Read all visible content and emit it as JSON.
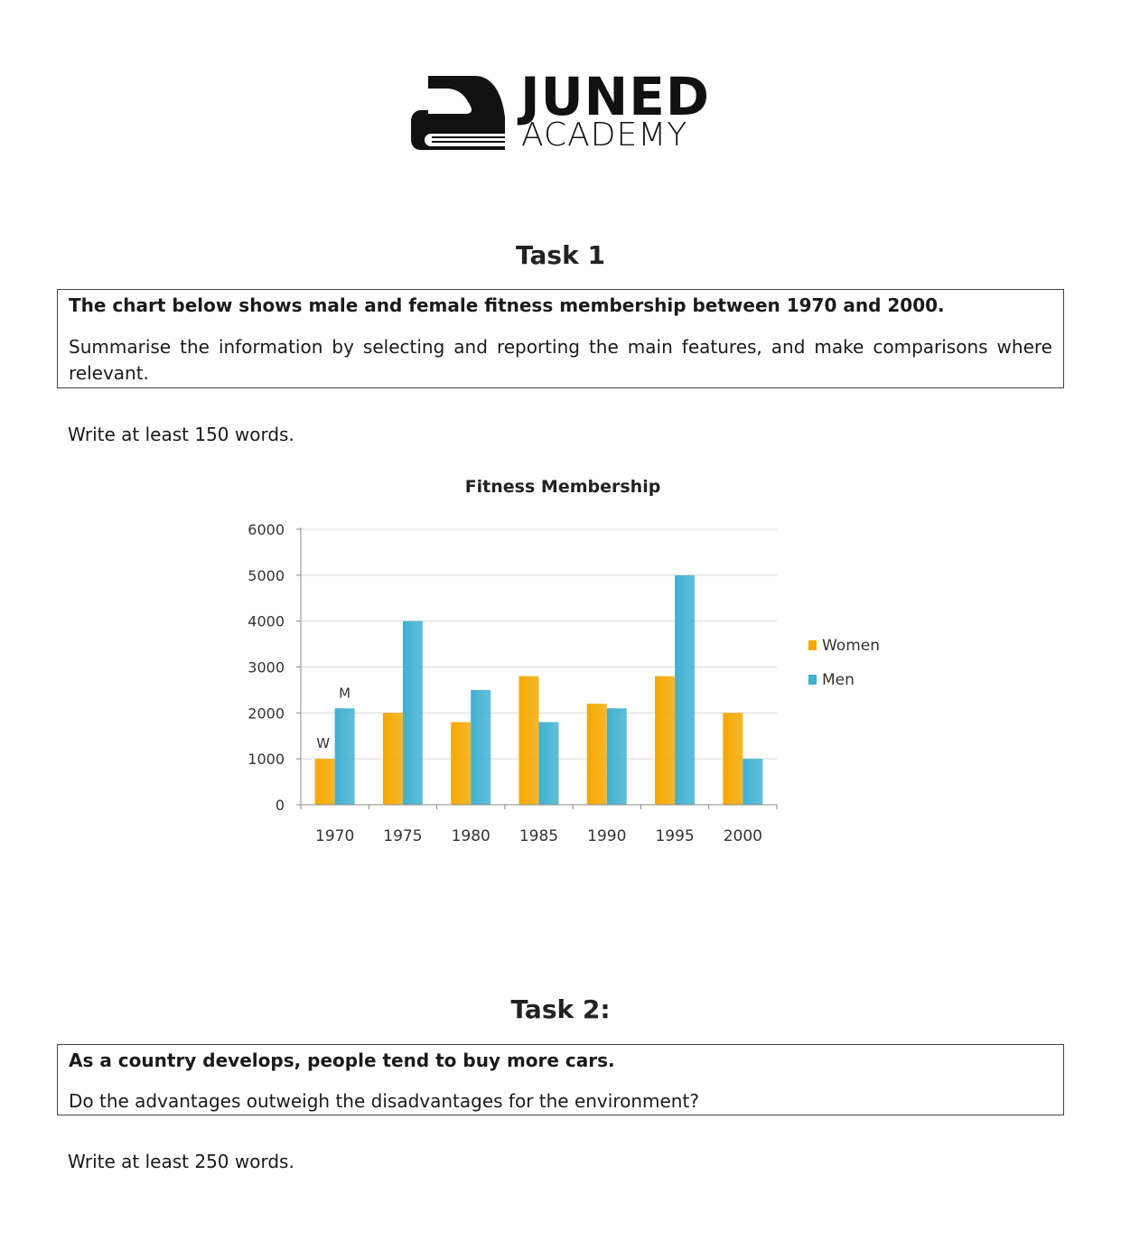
{
  "logo": {
    "line1": "JUNED",
    "line2": "ACADEMY"
  },
  "task1": {
    "heading": "Task 1",
    "prompt": "The chart below shows male and female fitness membership between 1970 and 2000.",
    "instruction": "Summarise the information by selecting and reporting the main features, and make comparisons where relevant.",
    "word_count": "Write at least 150 words."
  },
  "chart_data": {
    "type": "bar",
    "title": "Fitness Membership",
    "categories": [
      "1970",
      "1975",
      "1980",
      "1985",
      "1990",
      "1995",
      "2000"
    ],
    "series": [
      {
        "name": "Women",
        "values": [
          1000,
          2000,
          1800,
          2800,
          2200,
          2800,
          2000
        ],
        "color": "#F5A800"
      },
      {
        "name": "Men",
        "values": [
          2100,
          4000,
          2500,
          1800,
          2100,
          5000,
          1000
        ],
        "color": "#3FB1D1"
      }
    ],
    "ylim": [
      0,
      6000
    ],
    "yticks": [
      "0",
      "1000",
      "2000",
      "3000",
      "4000",
      "5000",
      "6000"
    ],
    "grid": true,
    "legend": "right",
    "annotations": [
      "W",
      "M"
    ]
  },
  "task2": {
    "heading": "Task 2:",
    "prompt": "As a country develops, people tend to buy more cars.",
    "question": "Do the advantages outweigh the disadvantages for the environment?",
    "word_count": "Write at least 250 words."
  }
}
